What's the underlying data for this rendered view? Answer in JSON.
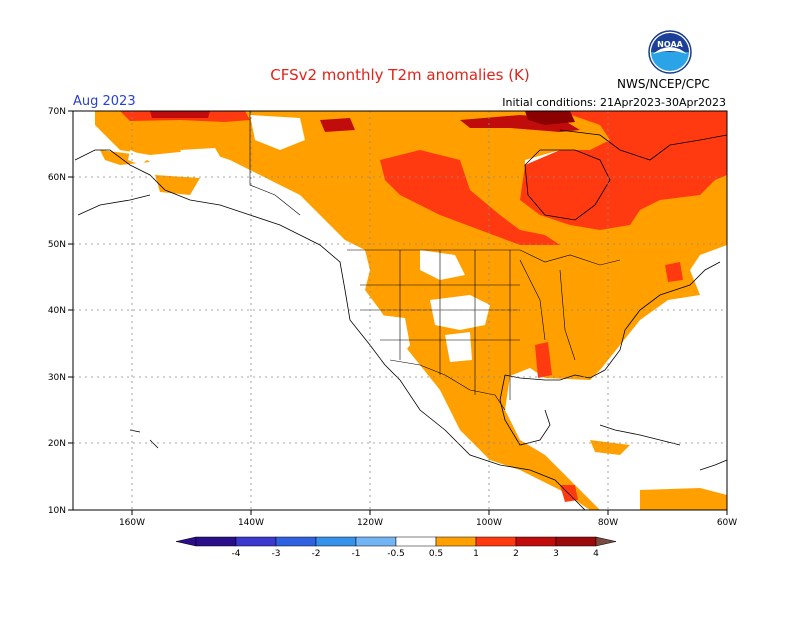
{
  "header": {
    "title": "CFSv2 monthly T2m anomalies (K)",
    "month": "Aug 2023",
    "initial_conditions": "Initial conditions: 21Apr2023-30Apr2023",
    "organization": "NWS/NCEP/CPC",
    "logo_text": "NOAA"
  },
  "map": {
    "lat_labels": [
      "70N",
      "60N",
      "50N",
      "40N",
      "30N",
      "20N",
      "10N"
    ],
    "lon_labels": [
      "160W",
      "140W",
      "120W",
      "100W",
      "80W",
      "60W"
    ],
    "region": "North America",
    "lat_range": [
      10,
      70
    ],
    "lon_range": [
      -170,
      -60
    ],
    "colors": {
      "0.5-1": "#ffa000",
      "1-2": "#ff3a10",
      "2-3": "#c10c0c",
      "3-4": "#8b0000",
      "land_outline": "#000000",
      "grid": "#888888"
    }
  },
  "colorbar": {
    "labels": [
      "-4",
      "-3",
      "-2",
      "-1",
      "-0.5",
      "0.5",
      "1",
      "2",
      "3",
      "4"
    ],
    "colors": [
      "#2b0e8a",
      "#3c39cf",
      "#2f62e0",
      "#3591ea",
      "#73b4f4",
      "#ffffff",
      "#ffa000",
      "#ff3a10",
      "#c10c0c",
      "#9b0a0a",
      "#c9a297",
      "#7b4a3e"
    ]
  }
}
